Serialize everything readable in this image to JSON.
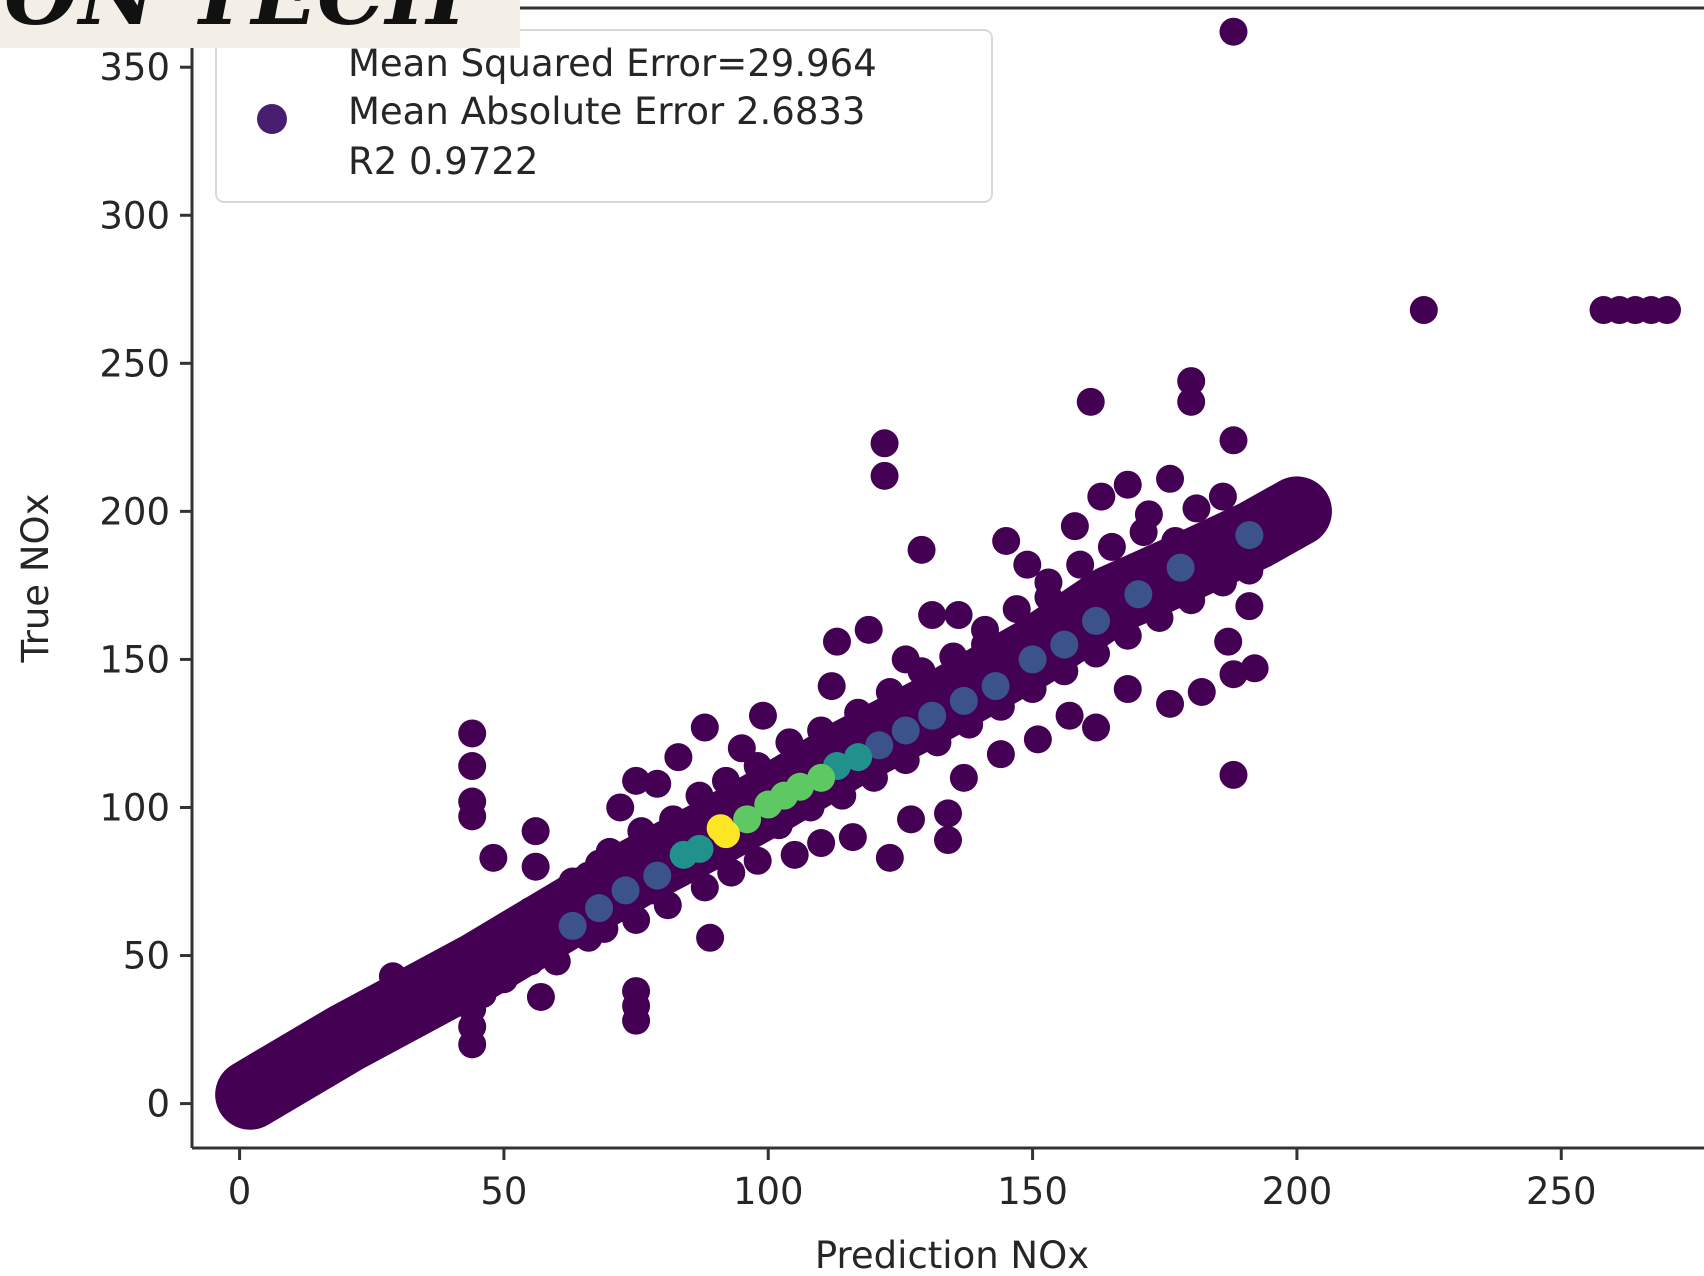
{
  "watermark": {
    "text": "ON TECH"
  },
  "chart_data": {
    "type": "scatter",
    "xlabel": "Prediction NOx",
    "ylabel": "True NOx",
    "xlim": [
      -9,
      277
    ],
    "ylim": [
      -15,
      370
    ],
    "xticks": [
      "0",
      "50",
      "100",
      "150",
      "200",
      "250"
    ],
    "xtick_values": [
      0,
      50,
      100,
      150,
      200,
      250
    ],
    "yticks": [
      "0",
      "50",
      "100",
      "150",
      "200",
      "250",
      "300",
      "350"
    ],
    "ytick_values": [
      0,
      50,
      100,
      150,
      200,
      250,
      300,
      350
    ],
    "grid": false,
    "colormap": "viridis",
    "legend": {
      "placement": "top-left",
      "marker_color": "#481f70",
      "lines": [
        "Mean Squared Error=29.964",
        "Mean Absolute Error 2.6833",
        "R2 0.9722"
      ]
    },
    "colors": [
      "#440154",
      "#3b528b",
      "#21918c",
      "#5ec962",
      "#fde725"
    ],
    "trend": [
      [
        2,
        3
      ],
      [
        20,
        22
      ],
      [
        45,
        46
      ],
      [
        60,
        62
      ],
      [
        75,
        78
      ],
      [
        90,
        92
      ],
      [
        100,
        102
      ],
      [
        115,
        118
      ],
      [
        130,
        132
      ],
      [
        150,
        152
      ],
      [
        165,
        170
      ],
      [
        180,
        182
      ],
      [
        192,
        192
      ],
      [
        200,
        200
      ]
    ],
    "points": [
      {
        "x": 188,
        "y": 362,
        "c": 0
      },
      {
        "x": 224,
        "y": 268,
        "c": 0
      },
      {
        "x": 258,
        "y": 268,
        "c": 0
      },
      {
        "x": 261,
        "y": 268,
        "c": 0
      },
      {
        "x": 264,
        "y": 268,
        "c": 0
      },
      {
        "x": 267,
        "y": 268,
        "c": 0
      },
      {
        "x": 270,
        "y": 268,
        "c": 0
      },
      {
        "x": 180,
        "y": 244,
        "c": 0
      },
      {
        "x": 180,
        "y": 237,
        "c": 0
      },
      {
        "x": 161,
        "y": 237,
        "c": 0
      },
      {
        "x": 122,
        "y": 223,
        "c": 0
      },
      {
        "x": 122,
        "y": 212,
        "c": 0
      },
      {
        "x": 188,
        "y": 224,
        "c": 0
      },
      {
        "x": 129,
        "y": 187,
        "c": 0
      },
      {
        "x": 188,
        "y": 111,
        "c": 0
      },
      {
        "x": 44,
        "y": 125,
        "c": 0
      },
      {
        "x": 44,
        "y": 114,
        "c": 0
      },
      {
        "x": 44,
        "y": 102,
        "c": 0
      },
      {
        "x": 44,
        "y": 97,
        "c": 0
      },
      {
        "x": 48,
        "y": 83,
        "c": 0
      },
      {
        "x": 56,
        "y": 92,
        "c": 0
      },
      {
        "x": 56,
        "y": 80,
        "c": 0
      },
      {
        "x": 89,
        "y": 56,
        "c": 0
      },
      {
        "x": 75,
        "y": 38,
        "c": 0
      },
      {
        "x": 75,
        "y": 33,
        "c": 0
      },
      {
        "x": 75,
        "y": 28,
        "c": 0
      },
      {
        "x": 57,
        "y": 36,
        "c": 0
      },
      {
        "x": 44,
        "y": 20,
        "c": 0
      },
      {
        "x": 44,
        "y": 26,
        "c": 0
      },
      {
        "x": 44,
        "y": 32,
        "c": 0
      },
      {
        "x": 44,
        "y": 40,
        "c": 0
      },
      {
        "x": 44,
        "y": 48,
        "c": 0
      },
      {
        "x": 47,
        "y": 55,
        "c": 0
      },
      {
        "x": 50,
        "y": 44,
        "c": 0
      },
      {
        "x": 29,
        "y": 43,
        "c": 0
      },
      {
        "x": 29,
        "y": 36,
        "c": 0
      },
      {
        "x": 33,
        "y": 34,
        "c": 0
      },
      {
        "x": 33,
        "y": 27,
        "c": 0
      },
      {
        "x": 27,
        "y": 25,
        "c": 0
      },
      {
        "x": 22,
        "y": 20,
        "c": 0
      },
      {
        "x": 22,
        "y": 27,
        "c": 0
      },
      {
        "x": 22,
        "y": 30,
        "c": 0
      },
      {
        "x": 12,
        "y": 17,
        "c": 0
      },
      {
        "x": 15,
        "y": 17,
        "c": 0
      },
      {
        "x": 10,
        "y": 13,
        "c": 0
      },
      {
        "x": 10,
        "y": 8,
        "c": 0
      },
      {
        "x": 8,
        "y": 10,
        "c": 0
      },
      {
        "x": 6,
        "y": 7,
        "c": 0
      },
      {
        "x": 4,
        "y": 5,
        "c": 0
      },
      {
        "x": 4,
        "y": 3,
        "c": 0
      },
      {
        "x": 3,
        "y": 6,
        "c": 0
      },
      {
        "x": 63,
        "y": 75,
        "c": 0
      },
      {
        "x": 68,
        "y": 81,
        "c": 0
      },
      {
        "x": 72,
        "y": 100,
        "c": 0
      },
      {
        "x": 75,
        "y": 109,
        "c": 0
      },
      {
        "x": 79,
        "y": 108,
        "c": 0
      },
      {
        "x": 83,
        "y": 117,
        "c": 0
      },
      {
        "x": 88,
        "y": 127,
        "c": 0
      },
      {
        "x": 95,
        "y": 120,
        "c": 0
      },
      {
        "x": 99,
        "y": 131,
        "c": 0
      },
      {
        "x": 112,
        "y": 141,
        "c": 0
      },
      {
        "x": 113,
        "y": 156,
        "c": 0
      },
      {
        "x": 119,
        "y": 160,
        "c": 0
      },
      {
        "x": 126,
        "y": 150,
        "c": 0
      },
      {
        "x": 131,
        "y": 165,
        "c": 0
      },
      {
        "x": 136,
        "y": 165,
        "c": 0
      },
      {
        "x": 141,
        "y": 155,
        "c": 0
      },
      {
        "x": 145,
        "y": 190,
        "c": 0
      },
      {
        "x": 149,
        "y": 182,
        "c": 0
      },
      {
        "x": 153,
        "y": 171,
        "c": 0
      },
      {
        "x": 158,
        "y": 195,
        "c": 0
      },
      {
        "x": 163,
        "y": 205,
        "c": 0
      },
      {
        "x": 168,
        "y": 209,
        "c": 0
      },
      {
        "x": 172,
        "y": 199,
        "c": 0
      },
      {
        "x": 176,
        "y": 211,
        "c": 0
      },
      {
        "x": 181,
        "y": 201,
        "c": 0
      },
      {
        "x": 186,
        "y": 205,
        "c": 0
      },
      {
        "x": 190,
        "y": 195,
        "c": 0
      },
      {
        "x": 193,
        "y": 200,
        "c": 0
      },
      {
        "x": 196,
        "y": 201,
        "c": 0
      },
      {
        "x": 200,
        "y": 202,
        "c": 0
      },
      {
        "x": 191,
        "y": 180,
        "c": 0
      },
      {
        "x": 191,
        "y": 168,
        "c": 0
      },
      {
        "x": 187,
        "y": 156,
        "c": 0
      },
      {
        "x": 192,
        "y": 147,
        "c": 0
      },
      {
        "x": 188,
        "y": 145,
        "c": 0
      },
      {
        "x": 182,
        "y": 139,
        "c": 0
      },
      {
        "x": 176,
        "y": 135,
        "c": 0
      },
      {
        "x": 168,
        "y": 140,
        "c": 0
      },
      {
        "x": 162,
        "y": 127,
        "c": 0
      },
      {
        "x": 157,
        "y": 131,
        "c": 0
      },
      {
        "x": 151,
        "y": 123,
        "c": 0
      },
      {
        "x": 144,
        "y": 118,
        "c": 0
      },
      {
        "x": 137,
        "y": 110,
        "c": 0
      },
      {
        "x": 134,
        "y": 98,
        "c": 0
      },
      {
        "x": 134,
        "y": 89,
        "c": 0
      },
      {
        "x": 127,
        "y": 96,
        "c": 0
      },
      {
        "x": 123,
        "y": 83,
        "c": 0
      },
      {
        "x": 116,
        "y": 90,
        "c": 0
      },
      {
        "x": 110,
        "y": 88,
        "c": 0
      },
      {
        "x": 105,
        "y": 84,
        "c": 0
      },
      {
        "x": 98,
        "y": 82,
        "c": 0
      },
      {
        "x": 93,
        "y": 78,
        "c": 0
      },
      {
        "x": 88,
        "y": 73,
        "c": 0
      },
      {
        "x": 81,
        "y": 67,
        "c": 0
      },
      {
        "x": 75,
        "y": 62,
        "c": 0
      },
      {
        "x": 69,
        "y": 59,
        "c": 0
      },
      {
        "x": 60,
        "y": 55,
        "c": 0
      },
      {
        "x": 55,
        "y": 48,
        "c": 0
      },
      {
        "x": 50,
        "y": 42,
        "c": 0
      },
      {
        "x": 46,
        "y": 37,
        "c": 0
      },
      {
        "x": 55,
        "y": 65,
        "c": 0
      },
      {
        "x": 60,
        "y": 70,
        "c": 0
      },
      {
        "x": 66,
        "y": 77,
        "c": 0
      },
      {
        "x": 70,
        "y": 85,
        "c": 0
      },
      {
        "x": 76,
        "y": 92,
        "c": 0
      },
      {
        "x": 82,
        "y": 96,
        "c": 0
      },
      {
        "x": 87,
        "y": 104,
        "c": 0
      },
      {
        "x": 92,
        "y": 109,
        "c": 0
      },
      {
        "x": 98,
        "y": 114,
        "c": 0
      },
      {
        "x": 104,
        "y": 122,
        "c": 0
      },
      {
        "x": 110,
        "y": 126,
        "c": 0
      },
      {
        "x": 117,
        "y": 132,
        "c": 0
      },
      {
        "x": 123,
        "y": 139,
        "c": 0
      },
      {
        "x": 129,
        "y": 146,
        "c": 0
      },
      {
        "x": 135,
        "y": 151,
        "c": 0
      },
      {
        "x": 141,
        "y": 160,
        "c": 0
      },
      {
        "x": 147,
        "y": 167,
        "c": 0
      },
      {
        "x": 153,
        "y": 176,
        "c": 0
      },
      {
        "x": 159,
        "y": 182,
        "c": 0
      },
      {
        "x": 165,
        "y": 188,
        "c": 0
      },
      {
        "x": 171,
        "y": 193,
        "c": 0
      },
      {
        "x": 177,
        "y": 190,
        "c": 0
      },
      {
        "x": 183,
        "y": 188,
        "c": 0
      },
      {
        "x": 60,
        "y": 48,
        "c": 0
      },
      {
        "x": 66,
        "y": 56,
        "c": 0
      },
      {
        "x": 72,
        "y": 66,
        "c": 0
      },
      {
        "x": 78,
        "y": 72,
        "c": 0
      },
      {
        "x": 84,
        "y": 80,
        "c": 0
      },
      {
        "x": 90,
        "y": 84,
        "c": 0
      },
      {
        "x": 96,
        "y": 90,
        "c": 0
      },
      {
        "x": 102,
        "y": 94,
        "c": 0
      },
      {
        "x": 108,
        "y": 100,
        "c": 0
      },
      {
        "x": 114,
        "y": 104,
        "c": 0
      },
      {
        "x": 120,
        "y": 110,
        "c": 0
      },
      {
        "x": 126,
        "y": 116,
        "c": 0
      },
      {
        "x": 132,
        "y": 122,
        "c": 0
      },
      {
        "x": 138,
        "y": 128,
        "c": 0
      },
      {
        "x": 144,
        "y": 134,
        "c": 0
      },
      {
        "x": 150,
        "y": 140,
        "c": 0
      },
      {
        "x": 156,
        "y": 146,
        "c": 0
      },
      {
        "x": 162,
        "y": 152,
        "c": 0
      },
      {
        "x": 168,
        "y": 158,
        "c": 0
      },
      {
        "x": 174,
        "y": 164,
        "c": 0
      },
      {
        "x": 180,
        "y": 170,
        "c": 0
      },
      {
        "x": 186,
        "y": 176,
        "c": 0
      },
      {
        "x": 63,
        "y": 60,
        "c": 1
      },
      {
        "x": 68,
        "y": 66,
        "c": 1
      },
      {
        "x": 73,
        "y": 72,
        "c": 1
      },
      {
        "x": 79,
        "y": 77,
        "c": 1
      },
      {
        "x": 84,
        "y": 84,
        "c": 2
      },
      {
        "x": 87,
        "y": 86,
        "c": 2
      },
      {
        "x": 92,
        "y": 91,
        "c": 4
      },
      {
        "x": 91,
        "y": 93,
        "c": 4
      },
      {
        "x": 96,
        "y": 96,
        "c": 3
      },
      {
        "x": 100,
        "y": 101,
        "c": 3
      },
      {
        "x": 103,
        "y": 104,
        "c": 3
      },
      {
        "x": 106,
        "y": 107,
        "c": 3
      },
      {
        "x": 110,
        "y": 110,
        "c": 3
      },
      {
        "x": 113,
        "y": 114,
        "c": 2
      },
      {
        "x": 117,
        "y": 117,
        "c": 2
      },
      {
        "x": 121,
        "y": 121,
        "c": 1
      },
      {
        "x": 126,
        "y": 126,
        "c": 1
      },
      {
        "x": 131,
        "y": 131,
        "c": 1
      },
      {
        "x": 137,
        "y": 136,
        "c": 1
      },
      {
        "x": 143,
        "y": 141,
        "c": 1
      },
      {
        "x": 150,
        "y": 150,
        "c": 1
      },
      {
        "x": 156,
        "y": 155,
        "c": 1
      },
      {
        "x": 162,
        "y": 163,
        "c": 1
      },
      {
        "x": 170,
        "y": 172,
        "c": 1
      },
      {
        "x": 178,
        "y": 181,
        "c": 1
      },
      {
        "x": 191,
        "y": 192,
        "c": 1
      }
    ]
  }
}
